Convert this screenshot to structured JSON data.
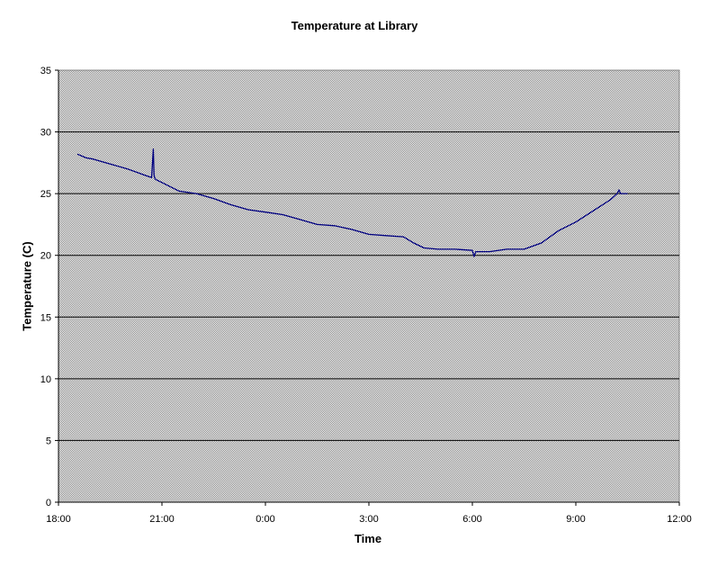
{
  "chart_data": {
    "type": "line",
    "title": "Temperature at Library",
    "xlabel": "Time",
    "ylabel": "Temperature (C)",
    "x_tick_labels": [
      "18:00",
      "21:00",
      "0:00",
      "3:00",
      "6:00",
      "9:00",
      "12:00"
    ],
    "y_tick_labels": [
      "0",
      "5",
      "10",
      "15",
      "20",
      "25",
      "30",
      "35"
    ],
    "xlim_hours": [
      18,
      36
    ],
    "ylim": [
      0,
      35
    ],
    "grid": "horizontal major",
    "plot_background": "#c0c0c0",
    "series": [
      {
        "color": "#000080",
        "x_hours": [
          18.55,
          18.8,
          19.0,
          19.5,
          20.0,
          20.5,
          20.7,
          20.75,
          20.77,
          20.8,
          20.85,
          21.0,
          21.5,
          22.0,
          22.5,
          23.0,
          23.5,
          24.0,
          24.5,
          25.0,
          25.5,
          26.0,
          26.5,
          27.0,
          27.5,
          28.0,
          28.3,
          28.6,
          29.0,
          29.5,
          30.0,
          30.05,
          30.1,
          30.5,
          31.0,
          31.5,
          32.0,
          32.5,
          33.0,
          33.5,
          34.0,
          34.2,
          34.25,
          34.3,
          34.5
        ],
        "y": [
          28.2,
          27.9,
          27.8,
          27.4,
          27.0,
          26.5,
          26.3,
          28.6,
          26.5,
          26.2,
          26.1,
          25.9,
          25.2,
          25.0,
          24.6,
          24.1,
          23.7,
          23.5,
          23.3,
          22.9,
          22.5,
          22.4,
          22.1,
          21.7,
          21.6,
          21.5,
          21.0,
          20.6,
          20.5,
          20.5,
          20.4,
          19.9,
          20.3,
          20.3,
          20.5,
          20.5,
          21.0,
          22.0,
          22.7,
          23.6,
          24.5,
          25.0,
          25.3,
          25.0,
          25.0
        ]
      }
    ]
  }
}
